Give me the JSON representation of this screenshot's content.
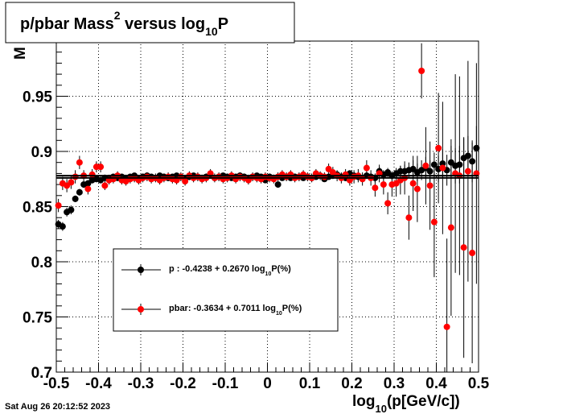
{
  "title": {
    "main": "p/pbar Mass",
    "sup": "2",
    "mid": " versus log",
    "sub": "10",
    "end": "P"
  },
  "y_axis_label_visible": "M",
  "x_axis_label": {
    "pre": "log",
    "sub": "10",
    "post": "(p[GeV/c])"
  },
  "timestamp": "Sat Aug 26 20:12:52 2023",
  "colors": {
    "p": "#000000",
    "pbar": "#ff0000",
    "frame": "#000000",
    "grid": "#000000"
  },
  "legend": {
    "entries": [
      {
        "series": "p",
        "pre": "p   : -0.4238 + 0.2670 log",
        "sub": "10",
        "post": "P(%)"
      },
      {
        "series": "pbar",
        "pre": "pbar: -0.3634 + 0.7011 log",
        "sub": "10",
        "post": "P(%)"
      }
    ]
  },
  "chart_data": {
    "type": "scatter",
    "xlim": [
      -0.5,
      0.5
    ],
    "ylim": [
      0.7,
      1.0
    ],
    "x_ticks": [
      "-0.5",
      "-0.4",
      "-0.3",
      "-0.2",
      "-0.1",
      "0",
      "0.1",
      "0.2",
      "0.3",
      "0.4",
      "0.5"
    ],
    "x_tick_values": [
      -0.5,
      -0.4,
      -0.3,
      -0.2,
      -0.1,
      0,
      0.1,
      0.2,
      0.3,
      0.4,
      0.5
    ],
    "y_ticks": [
      "0.7",
      "0.75",
      "0.8",
      "0.85",
      "0.9",
      "0.95"
    ],
    "y_tick_values": [
      0.7,
      0.75,
      0.8,
      0.85,
      0.9,
      0.95
    ],
    "grid": true,
    "series": [
      {
        "name": "p",
        "fit": {
          "intercept": -0.4238,
          "slope": 0.267,
          "y_level": 0.878
        },
        "points": [
          [
            -0.495,
            0.834,
            0.004
          ],
          [
            -0.485,
            0.832,
            0.004
          ],
          [
            -0.475,
            0.845,
            0.004
          ],
          [
            -0.465,
            0.847,
            0.004
          ],
          [
            -0.455,
            0.857,
            0.003
          ],
          [
            -0.445,
            0.863,
            0.003
          ],
          [
            -0.435,
            0.87,
            0.003
          ],
          [
            -0.425,
            0.871,
            0.003
          ],
          [
            -0.415,
            0.874,
            0.003
          ],
          [
            -0.405,
            0.875,
            0.003
          ],
          [
            -0.395,
            0.874,
            0.003
          ],
          [
            -0.385,
            0.876,
            0.003
          ],
          [
            -0.375,
            0.876,
            0.002
          ],
          [
            -0.365,
            0.877,
            0.002
          ],
          [
            -0.355,
            0.876,
            0.002
          ],
          [
            -0.345,
            0.877,
            0.002
          ],
          [
            -0.335,
            0.876,
            0.002
          ],
          [
            -0.325,
            0.877,
            0.002
          ],
          [
            -0.315,
            0.878,
            0.002
          ],
          [
            -0.305,
            0.876,
            0.002
          ],
          [
            -0.295,
            0.877,
            0.002
          ],
          [
            -0.285,
            0.878,
            0.002
          ],
          [
            -0.275,
            0.877,
            0.002
          ],
          [
            -0.265,
            0.876,
            0.002
          ],
          [
            -0.255,
            0.878,
            0.002
          ],
          [
            -0.245,
            0.877,
            0.002
          ],
          [
            -0.235,
            0.876,
            0.002
          ],
          [
            -0.225,
            0.877,
            0.002
          ],
          [
            -0.215,
            0.878,
            0.002
          ],
          [
            -0.205,
            0.877,
            0.002
          ],
          [
            -0.195,
            0.876,
            0.002
          ],
          [
            -0.185,
            0.877,
            0.002
          ],
          [
            -0.175,
            0.878,
            0.002
          ],
          [
            -0.165,
            0.877,
            0.002
          ],
          [
            -0.155,
            0.876,
            0.002
          ],
          [
            -0.145,
            0.877,
            0.002
          ],
          [
            -0.135,
            0.878,
            0.002
          ],
          [
            -0.125,
            0.876,
            0.002
          ],
          [
            -0.115,
            0.877,
            0.002
          ],
          [
            -0.105,
            0.878,
            0.002
          ],
          [
            -0.095,
            0.877,
            0.002
          ],
          [
            -0.085,
            0.876,
            0.002
          ],
          [
            -0.075,
            0.877,
            0.002
          ],
          [
            -0.065,
            0.878,
            0.002
          ],
          [
            -0.055,
            0.877,
            0.002
          ],
          [
            -0.045,
            0.876,
            0.002
          ],
          [
            -0.035,
            0.877,
            0.002
          ],
          [
            -0.025,
            0.878,
            0.002
          ],
          [
            -0.015,
            0.877,
            0.002
          ],
          [
            -0.005,
            0.874,
            0.002
          ],
          [
            0.005,
            0.877,
            0.002
          ],
          [
            0.015,
            0.876,
            0.002
          ],
          [
            0.025,
            0.87,
            0.002
          ],
          [
            0.035,
            0.876,
            0.002
          ],
          [
            0.045,
            0.877,
            0.002
          ],
          [
            0.055,
            0.876,
            0.002
          ],
          [
            0.065,
            0.877,
            0.002
          ],
          [
            0.075,
            0.877,
            0.002
          ],
          [
            0.085,
            0.876,
            0.002
          ],
          [
            0.095,
            0.877,
            0.002
          ],
          [
            0.105,
            0.876,
            0.002
          ],
          [
            0.115,
            0.877,
            0.002
          ],
          [
            0.125,
            0.878,
            0.002
          ],
          [
            0.135,
            0.875,
            0.002
          ],
          [
            0.145,
            0.877,
            0.002
          ],
          [
            0.155,
            0.878,
            0.003
          ],
          [
            0.165,
            0.879,
            0.003
          ],
          [
            0.175,
            0.877,
            0.003
          ],
          [
            0.185,
            0.876,
            0.003
          ],
          [
            0.195,
            0.88,
            0.003
          ],
          [
            0.205,
            0.878,
            0.003
          ],
          [
            0.215,
            0.877,
            0.003
          ],
          [
            0.225,
            0.876,
            0.003
          ],
          [
            0.235,
            0.878,
            0.003
          ],
          [
            0.245,
            0.877,
            0.003
          ],
          [
            0.255,
            0.876,
            0.004
          ],
          [
            0.265,
            0.882,
            0.004
          ],
          [
            0.275,
            0.879,
            0.004
          ],
          [
            0.285,
            0.881,
            0.004
          ],
          [
            0.295,
            0.878,
            0.004
          ],
          [
            0.305,
            0.88,
            0.005
          ],
          [
            0.315,
            0.882,
            0.005
          ],
          [
            0.325,
            0.882,
            0.006
          ],
          [
            0.335,
            0.883,
            0.007
          ],
          [
            0.345,
            0.884,
            0.008
          ],
          [
            0.355,
            0.881,
            0.008
          ],
          [
            0.365,
            0.883,
            0.009
          ],
          [
            0.375,
            0.885,
            0.01
          ],
          [
            0.385,
            0.882,
            0.01
          ],
          [
            0.395,
            0.888,
            0.011
          ],
          [
            0.405,
            0.884,
            0.012
          ],
          [
            0.415,
            0.889,
            0.013
          ],
          [
            0.425,
            0.883,
            0.014
          ],
          [
            0.435,
            0.89,
            0.015
          ],
          [
            0.445,
            0.887,
            0.016
          ],
          [
            0.455,
            0.888,
            0.017
          ],
          [
            0.465,
            0.894,
            0.018
          ],
          [
            0.475,
            0.896,
            0.018
          ],
          [
            0.485,
            0.891,
            0.019
          ],
          [
            0.495,
            0.903,
            0.02
          ]
        ]
      },
      {
        "name": "pbar",
        "fit": {
          "intercept": -0.3634,
          "slope": 0.7011,
          "y_level": 0.876
        },
        "points": [
          [
            -0.495,
            0.851,
            0.006
          ],
          [
            -0.485,
            0.871,
            0.006
          ],
          [
            -0.475,
            0.869,
            0.006
          ],
          [
            -0.465,
            0.872,
            0.006
          ],
          [
            -0.455,
            0.877,
            0.006
          ],
          [
            -0.445,
            0.89,
            0.006
          ],
          [
            -0.435,
            0.878,
            0.005
          ],
          [
            -0.425,
            0.866,
            0.005
          ],
          [
            -0.415,
            0.879,
            0.005
          ],
          [
            -0.405,
            0.886,
            0.005
          ],
          [
            -0.395,
            0.886,
            0.005
          ],
          [
            -0.385,
            0.869,
            0.004
          ],
          [
            -0.375,
            0.874,
            0.004
          ],
          [
            -0.365,
            0.875,
            0.004
          ],
          [
            -0.355,
            0.878,
            0.004
          ],
          [
            -0.345,
            0.874,
            0.004
          ],
          [
            -0.335,
            0.873,
            0.004
          ],
          [
            -0.325,
            0.875,
            0.004
          ],
          [
            -0.315,
            0.876,
            0.004
          ],
          [
            -0.305,
            0.874,
            0.004
          ],
          [
            -0.295,
            0.876,
            0.004
          ],
          [
            -0.285,
            0.877,
            0.004
          ],
          [
            -0.275,
            0.875,
            0.004
          ],
          [
            -0.265,
            0.876,
            0.004
          ],
          [
            -0.255,
            0.874,
            0.004
          ],
          [
            -0.245,
            0.876,
            0.004
          ],
          [
            -0.235,
            0.877,
            0.004
          ],
          [
            -0.225,
            0.875,
            0.004
          ],
          [
            -0.215,
            0.874,
            0.004
          ],
          [
            -0.205,
            0.877,
            0.004
          ],
          [
            -0.195,
            0.873,
            0.004
          ],
          [
            -0.185,
            0.878,
            0.004
          ],
          [
            -0.175,
            0.876,
            0.004
          ],
          [
            -0.165,
            0.877,
            0.004
          ],
          [
            -0.155,
            0.875,
            0.004
          ],
          [
            -0.145,
            0.876,
            0.004
          ],
          [
            -0.135,
            0.88,
            0.004
          ],
          [
            -0.125,
            0.876,
            0.004
          ],
          [
            -0.115,
            0.877,
            0.004
          ],
          [
            -0.105,
            0.875,
            0.004
          ],
          [
            -0.095,
            0.876,
            0.004
          ],
          [
            -0.085,
            0.878,
            0.004
          ],
          [
            -0.075,
            0.875,
            0.004
          ],
          [
            -0.065,
            0.877,
            0.004
          ],
          [
            -0.055,
            0.876,
            0.004
          ],
          [
            -0.045,
            0.874,
            0.004
          ],
          [
            -0.035,
            0.877,
            0.004
          ],
          [
            -0.025,
            0.876,
            0.004
          ],
          [
            -0.015,
            0.875,
            0.004
          ],
          [
            -0.005,
            0.877,
            0.004
          ],
          [
            0.005,
            0.876,
            0.004
          ],
          [
            0.015,
            0.875,
            0.004
          ],
          [
            0.025,
            0.877,
            0.004
          ],
          [
            0.035,
            0.879,
            0.004
          ],
          [
            0.045,
            0.877,
            0.004
          ],
          [
            0.055,
            0.879,
            0.004
          ],
          [
            0.065,
            0.876,
            0.004
          ],
          [
            0.075,
            0.877,
            0.004
          ],
          [
            0.085,
            0.879,
            0.004
          ],
          [
            0.095,
            0.877,
            0.004
          ],
          [
            0.105,
            0.876,
            0.004
          ],
          [
            0.115,
            0.88,
            0.004
          ],
          [
            0.125,
            0.878,
            0.004
          ],
          [
            0.135,
            0.877,
            0.004
          ],
          [
            0.145,
            0.884,
            0.005
          ],
          [
            0.155,
            0.881,
            0.005
          ],
          [
            0.165,
            0.878,
            0.005
          ],
          [
            0.175,
            0.876,
            0.005
          ],
          [
            0.185,
            0.879,
            0.005
          ],
          [
            0.195,
            0.874,
            0.005
          ],
          [
            0.205,
            0.877,
            0.006
          ],
          [
            0.215,
            0.878,
            0.006
          ],
          [
            0.225,
            0.875,
            0.006
          ],
          [
            0.235,
            0.885,
            0.007
          ],
          [
            0.245,
            0.876,
            0.007
          ],
          [
            0.255,
            0.867,
            0.008
          ],
          [
            0.265,
            0.88,
            0.008
          ],
          [
            0.275,
            0.87,
            0.009
          ],
          [
            0.285,
            0.853,
            0.01
          ],
          [
            0.295,
            0.87,
            0.011
          ],
          [
            0.305,
            0.871,
            0.012
          ],
          [
            0.315,
            0.874,
            0.013
          ],
          [
            0.325,
            0.876,
            0.015
          ],
          [
            0.335,
            0.84,
            0.02
          ],
          [
            0.345,
            0.871,
            0.025
          ],
          [
            0.355,
            0.866,
            0.03
          ],
          [
            0.365,
            0.973,
            0.025
          ],
          [
            0.375,
            0.887,
            0.035
          ],
          [
            0.385,
            0.869,
            0.04
          ],
          [
            0.395,
            0.836,
            0.05
          ],
          [
            0.405,
            0.903,
            0.05
          ],
          [
            0.415,
            0.885,
            0.06
          ],
          [
            0.425,
            0.741,
            0.08
          ],
          [
            0.435,
            0.831,
            0.08
          ],
          [
            0.445,
            0.88,
            0.09
          ],
          [
            0.455,
            0.878,
            0.09
          ],
          [
            0.465,
            0.813,
            0.1
          ],
          [
            0.475,
            0.882,
            0.1
          ],
          [
            0.485,
            0.808,
            0.1
          ],
          [
            0.495,
            0.88,
            0.1
          ]
        ]
      }
    ]
  }
}
